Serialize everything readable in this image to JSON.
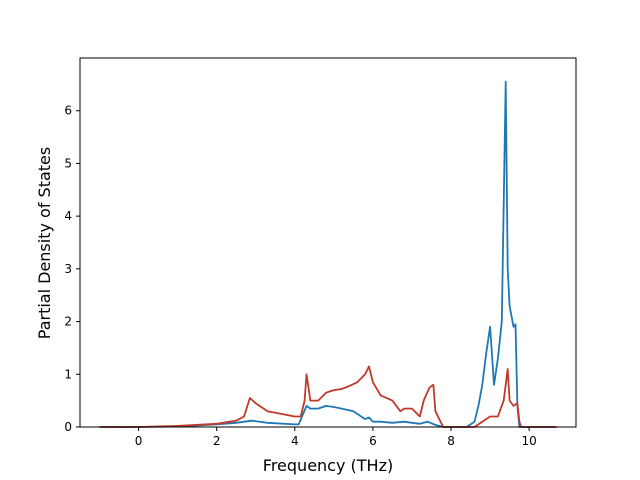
{
  "chart_data": {
    "type": "line",
    "title": "",
    "xlabel": "Frequency (THz)",
    "ylabel": "Partial Density of States",
    "xlim": [
      -1.5,
      11.2
    ],
    "ylim": [
      0,
      7.0
    ],
    "x_ticks": [
      0,
      2,
      4,
      6,
      8,
      10
    ],
    "y_ticks": [
      0,
      1,
      2,
      3,
      4,
      5,
      6
    ],
    "grid": false,
    "legend": "none",
    "series": [
      {
        "color": "#1f77b4",
        "x": [
          -1.0,
          0.0,
          1.0,
          2.0,
          2.5,
          2.9,
          3.3,
          4.0,
          4.1,
          4.3,
          4.4,
          4.6,
          4.8,
          5.0,
          5.2,
          5.5,
          5.8,
          5.9,
          6.0,
          6.2,
          6.5,
          6.8,
          7.0,
          7.2,
          7.4,
          7.6,
          7.8,
          8.0,
          8.2,
          8.4,
          8.6,
          8.7,
          8.8,
          8.9,
          9.0,
          9.1,
          9.2,
          9.3,
          9.4,
          9.45,
          9.5,
          9.6,
          9.65,
          9.7,
          9.75,
          9.8,
          10.0,
          10.5,
          10.7
        ],
        "values": [
          0,
          0,
          0.01,
          0.05,
          0.08,
          0.12,
          0.08,
          0.05,
          0.05,
          0.4,
          0.35,
          0.35,
          0.4,
          0.38,
          0.35,
          0.3,
          0.15,
          0.18,
          0.1,
          0.1,
          0.08,
          0.1,
          0.08,
          0.06,
          0.1,
          0.04,
          0.0,
          0.0,
          0.0,
          0.0,
          0.1,
          0.4,
          0.8,
          1.4,
          1.9,
          0.8,
          1.3,
          2.0,
          6.55,
          3.0,
          2.3,
          1.9,
          1.95,
          0.4,
          0.0,
          0.0,
          0.0,
          0.0,
          0.0
        ]
      },
      {
        "color": "#c0392b",
        "x": [
          -1.0,
          0.0,
          1.0,
          2.0,
          2.5,
          2.7,
          2.85,
          3.0,
          3.3,
          4.0,
          4.15,
          4.25,
          4.3,
          4.4,
          4.6,
          4.8,
          5.0,
          5.2,
          5.4,
          5.6,
          5.8,
          5.9,
          6.0,
          6.2,
          6.5,
          6.7,
          6.8,
          7.0,
          7.2,
          7.3,
          7.45,
          7.55,
          7.6,
          7.8,
          8.0,
          8.2,
          8.4,
          8.6,
          8.8,
          9.0,
          9.2,
          9.35,
          9.45,
          9.5,
          9.6,
          9.7,
          9.75,
          9.8,
          10.0,
          10.5,
          10.7
        ],
        "values": [
          0,
          0,
          0.02,
          0.06,
          0.12,
          0.2,
          0.55,
          0.45,
          0.3,
          0.2,
          0.2,
          0.5,
          1.0,
          0.5,
          0.5,
          0.65,
          0.7,
          0.72,
          0.78,
          0.85,
          1.0,
          1.15,
          0.85,
          0.6,
          0.5,
          0.3,
          0.35,
          0.35,
          0.2,
          0.5,
          0.75,
          0.8,
          0.3,
          0.0,
          0.0,
          0.0,
          0.0,
          0.0,
          0.1,
          0.2,
          0.2,
          0.5,
          1.1,
          0.5,
          0.4,
          0.45,
          0.1,
          0.0,
          0.0,
          0.0,
          0.0
        ]
      }
    ]
  }
}
